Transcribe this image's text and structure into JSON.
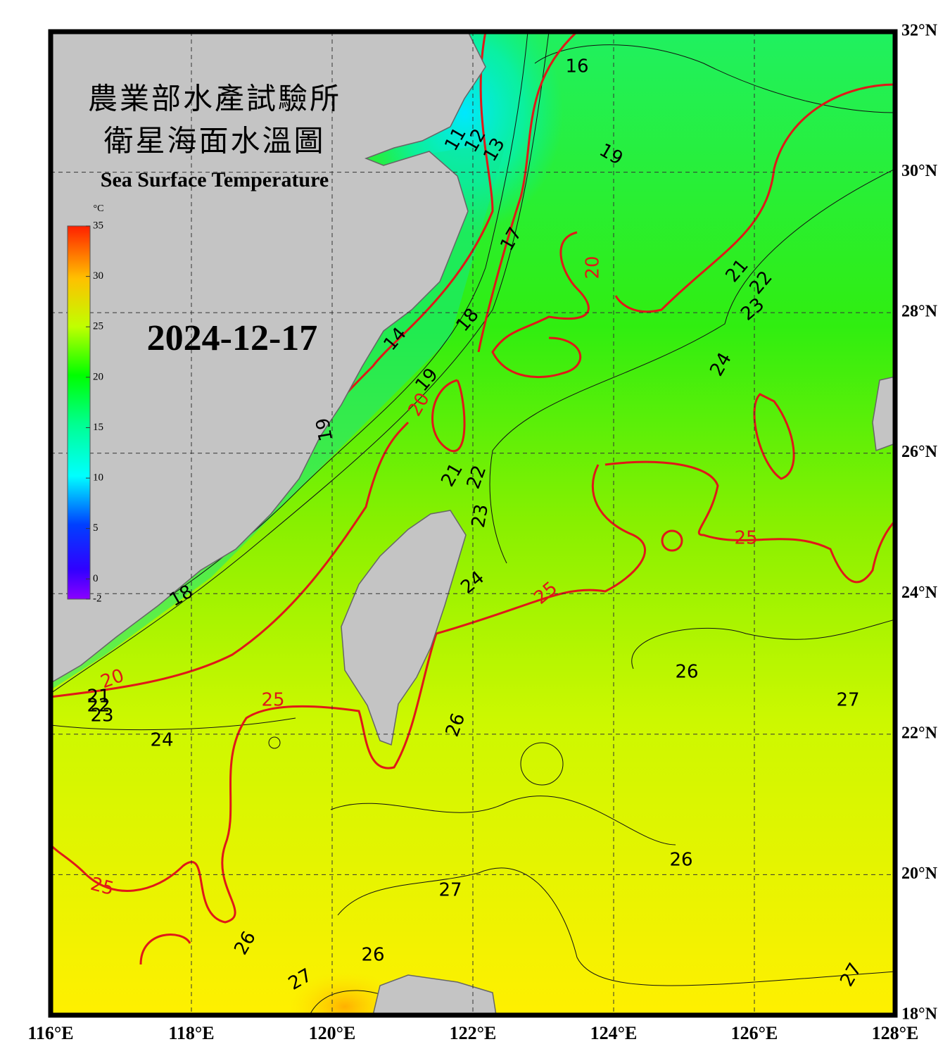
{
  "map": {
    "title_zh": "農業部水產試驗所",
    "subtitle_zh": "衛星海面水溫圖",
    "title_en": "Sea Surface Temperature",
    "date": "2024-12-17",
    "colorbar": {
      "unit": "°C",
      "range": [
        -2,
        35
      ],
      "ticks": [
        -2,
        0,
        5,
        10,
        15,
        20,
        25,
        30,
        35
      ]
    },
    "lon_range": [
      116,
      128
    ],
    "lat_range": [
      18,
      32
    ],
    "lon_ticks": [
      {
        "value": 116,
        "label": "116°E"
      },
      {
        "value": 118,
        "label": "118°E"
      },
      {
        "value": 120,
        "label": "120°E"
      },
      {
        "value": 122,
        "label": "122°E"
      },
      {
        "value": 124,
        "label": "124°E"
      },
      {
        "value": 126,
        "label": "126°E"
      },
      {
        "value": 128,
        "label": "128°E"
      }
    ],
    "lat_ticks": [
      {
        "value": 18,
        "label": "18°N"
      },
      {
        "value": 20,
        "label": "20°N"
      },
      {
        "value": 22,
        "label": "22°N"
      },
      {
        "value": 24,
        "label": "24°N"
      },
      {
        "value": 26,
        "label": "26°N"
      },
      {
        "value": 28,
        "label": "28°N"
      },
      {
        "value": 30,
        "label": "30°N"
      },
      {
        "value": 32,
        "label": "32°N"
      }
    ],
    "contour_labels": [
      16,
      11,
      12,
      13,
      19,
      17,
      20,
      21,
      22,
      23,
      18,
      14,
      24,
      19,
      20,
      19,
      21,
      22,
      23,
      25,
      24,
      25,
      18,
      26,
      20,
      21,
      22,
      23,
      25,
      27,
      26,
      24,
      26,
      25,
      27,
      26,
      26,
      27,
      27
    ]
  }
}
